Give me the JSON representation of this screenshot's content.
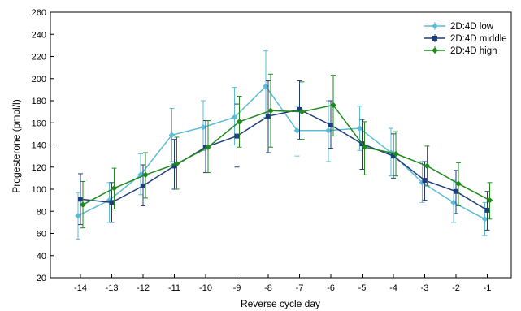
{
  "chart_data": {
    "type": "line",
    "title": "",
    "xlabel": "Reverse cycle day",
    "ylabel": "Progesterone (pmol/l)",
    "ylim": [
      20,
      260
    ],
    "yticks": [
      20,
      40,
      60,
      80,
      100,
      120,
      140,
      160,
      180,
      200,
      220,
      240,
      260
    ],
    "x": [
      -14,
      -13,
      -12,
      -11,
      -10,
      -9,
      -8,
      -7,
      -6,
      -5,
      -4,
      -3,
      -2,
      -1
    ],
    "legend_position": "top-right",
    "grid": false,
    "series": [
      {
        "name": "2D:4D low",
        "color": "#5bbcd6",
        "marker": "diamond",
        "values": [
          76,
          90,
          113,
          149,
          156,
          165,
          193,
          153,
          153,
          155,
          133,
          106,
          88,
          73
        ],
        "err_low": [
          55,
          70,
          95,
          125,
          135,
          140,
          165,
          130,
          125,
          135,
          112,
          88,
          70,
          58
        ],
        "err_high": [
          97,
          106,
          132,
          173,
          180,
          192,
          225,
          175,
          180,
          175,
          155,
          125,
          108,
          88
        ]
      },
      {
        "name": "2D:4D middle",
        "color": "#1f3d7a",
        "marker": "square",
        "values": [
          91,
          88,
          103,
          121,
          138,
          148,
          166,
          172,
          158,
          141,
          130,
          108,
          98,
          81
        ],
        "err_low": [
          68,
          70,
          85,
          100,
          115,
          120,
          133,
          145,
          137,
          118,
          110,
          90,
          78,
          63
        ],
        "err_high": [
          114,
          106,
          122,
          145,
          162,
          177,
          198,
          198,
          180,
          163,
          150,
          125,
          117,
          98
        ]
      },
      {
        "name": "2D:4D high",
        "color": "#1e8a1e",
        "marker": "diamond",
        "values": [
          86,
          101,
          113,
          123,
          138,
          161,
          171,
          170,
          176,
          138,
          132,
          121,
          105,
          90
        ],
        "err_low": [
          65,
          82,
          92,
          100,
          115,
          138,
          138,
          145,
          148,
          113,
          112,
          103,
          85,
          73
        ],
        "err_high": [
          107,
          119,
          133,
          147,
          162,
          184,
          204,
          197,
          203,
          161,
          152,
          139,
          124,
          106
        ]
      }
    ]
  }
}
